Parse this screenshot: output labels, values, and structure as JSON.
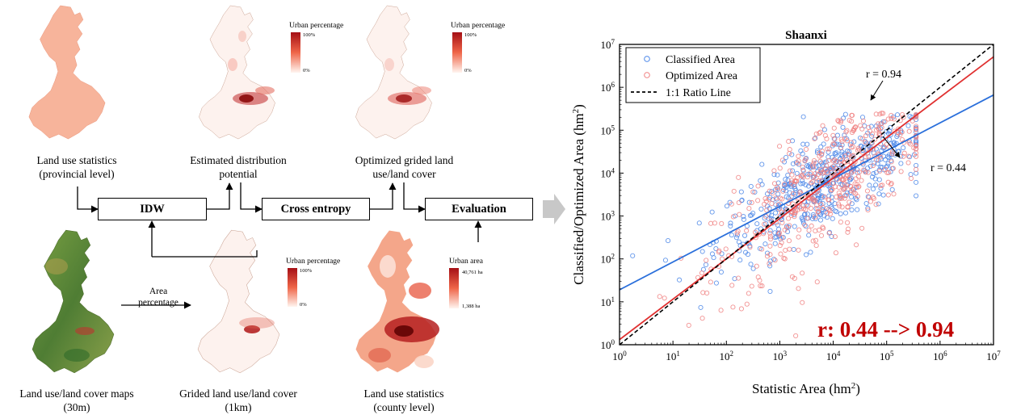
{
  "workflow": {
    "labels": {
      "provincial": "Land use statistics\n(provincial level)",
      "estimated": "Estimated distribution\npotential",
      "optimized": "Optimized grided land\nuse/land cover",
      "maps30m": "Land use/land cover maps\n(30m)",
      "grided1km": "Grided land use/land cover\n(1km)",
      "county": "Land use statistics\n(county level)"
    },
    "boxes": {
      "idw": "IDW",
      "cross_entropy": "Cross entropy",
      "evaluation": "Evaluation"
    },
    "area_percentage": "Area\npercentage",
    "legends": {
      "estimated": {
        "title": "Urban percentage",
        "max": "100%",
        "min": "0%"
      },
      "optimized": {
        "title": "Urban percentage",
        "max": "100%",
        "min": "0%"
      },
      "grided": {
        "title": "Urban percentage",
        "max": "100%",
        "min": "0%"
      },
      "county": {
        "title": "Urban area",
        "max": "40,761 ha",
        "min": "1,388 ha"
      }
    },
    "colors": {
      "province_fill": "#f7b49b",
      "urban_dark": "#a50f15",
      "urban_light": "#fcebe4",
      "green_map": "#5a8a3a",
      "arrow_gray": "#c8c8c8"
    }
  },
  "chart_data": {
    "type": "scatter",
    "title": "Shaanxi",
    "xlabel": "Statistic Area (hm²)",
    "ylabel": "Classified/Optimized Area (hm²)",
    "xlim_log10": [
      0,
      7
    ],
    "ylim_log10": [
      0,
      7
    ],
    "x_ticks": [
      "10^0",
      "10^1",
      "10^2",
      "10^3",
      "10^4",
      "10^5",
      "10^6",
      "10^7"
    ],
    "y_ticks": [
      "10^0",
      "10^1",
      "10^2",
      "10^3",
      "10^4",
      "10^5",
      "10^6",
      "10^7"
    ],
    "legend": [
      {
        "name": "Classified Area",
        "marker": "circle",
        "color": "#4a86e8"
      },
      {
        "name": "Optimized Area",
        "marker": "circle",
        "color": "#f08080"
      },
      {
        "name": "1:1 Ratio Line",
        "marker": "dashed-line",
        "color": "#000000"
      }
    ],
    "series": [
      {
        "name": "Classified Area fit",
        "color": "#2a6fdb",
        "log_x": [
          0,
          7
        ],
        "log_y": [
          1.28,
          5.82
        ]
      },
      {
        "name": "Optimized Area fit",
        "color": "#e03030",
        "log_x": [
          0,
          7
        ],
        "log_y": [
          0.12,
          6.71
        ]
      },
      {
        "name": "1:1 Ratio Line",
        "color": "#000000",
        "log_x": [
          0,
          7
        ],
        "log_y": [
          0,
          7
        ]
      }
    ],
    "annotations": {
      "r_optimized": "r = 0.94",
      "r_classified": "r = 0.44",
      "big": "r: 0.44 --> 0.94",
      "big_color": "#c00000"
    }
  }
}
